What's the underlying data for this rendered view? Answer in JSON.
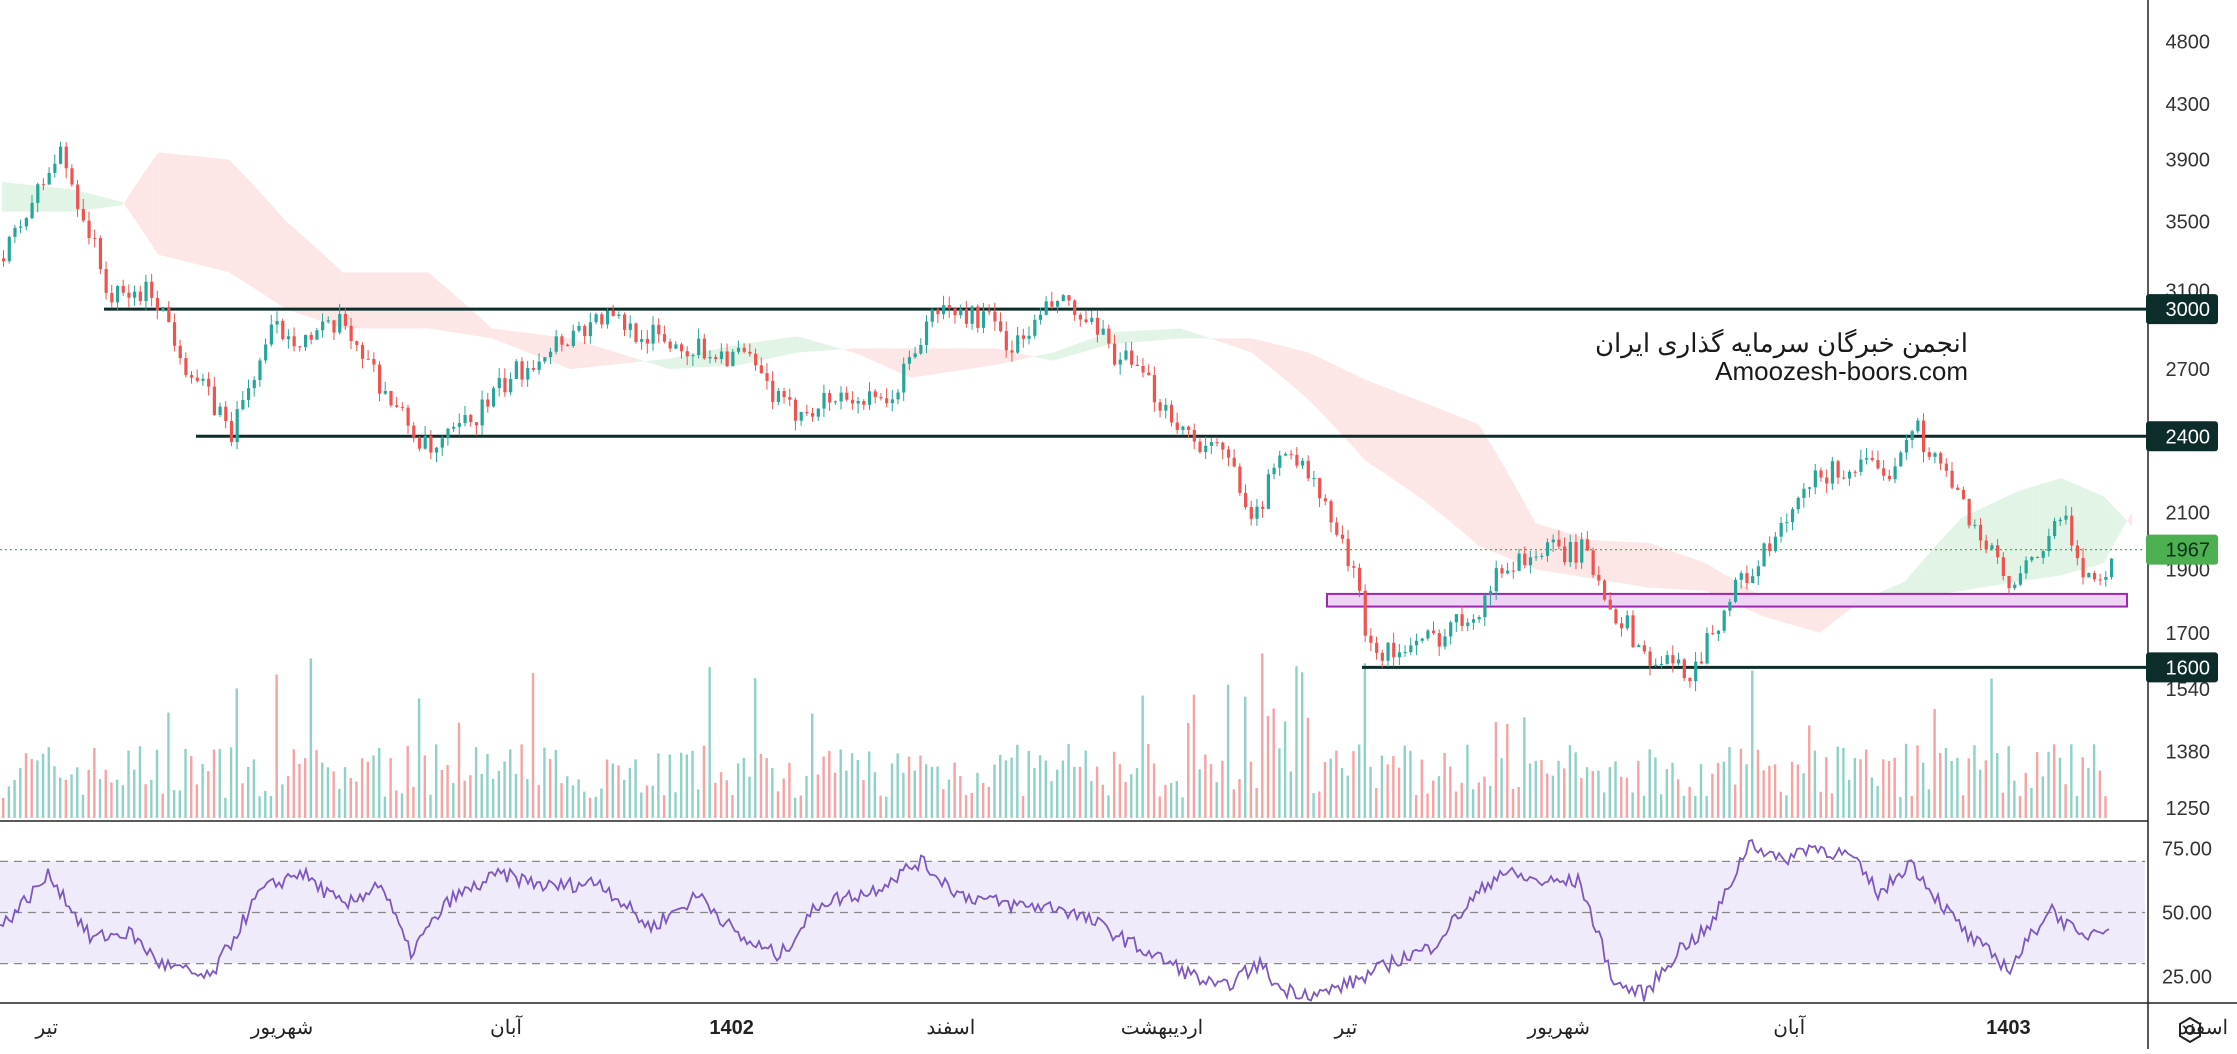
{
  "chart_data": [
    {
      "type": "candlestick",
      "panel": "price",
      "title": "",
      "watermark_lines": [
        "انجمن خبرگان سرمایه گذاری ایران",
        "Amoozesh-boors.com"
      ],
      "y_scale": "log",
      "ylim": [
        1250,
        5000
      ],
      "y_ticks": [
        4800,
        4300,
        3900,
        3500,
        3100,
        2700,
        2400,
        2100,
        1900,
        1700,
        1540,
        1380,
        1250
      ],
      "current_price": 1967,
      "current_price_label": "1967",
      "horizontal_levels": [
        {
          "price": 3000,
          "label": "3000",
          "from": "تیر",
          "to": "end"
        },
        {
          "price": 2400,
          "label": "2400",
          "from": "شهریور",
          "to": "end"
        },
        {
          "price": 1600,
          "label": "1600",
          "from": "شهریور",
          "to": "end"
        }
      ],
      "support_zone": {
        "low": 1780,
        "high": 1820
      },
      "series_anchors": [
        {
          "t": 0,
          "price": 3280
        },
        {
          "t": 40,
          "price": 3950
        },
        {
          "t": 75,
          "price": 3050
        },
        {
          "t": 105,
          "price": 3100
        },
        {
          "t": 130,
          "price": 2700
        },
        {
          "t": 160,
          "price": 2420
        },
        {
          "t": 190,
          "price": 2900
        },
        {
          "t": 215,
          "price": 2850
        },
        {
          "t": 240,
          "price": 2920
        },
        {
          "t": 275,
          "price": 2520
        },
        {
          "t": 300,
          "price": 2320
        },
        {
          "t": 330,
          "price": 2480
        },
        {
          "t": 355,
          "price": 2650
        },
        {
          "t": 380,
          "price": 2800
        },
        {
          "t": 420,
          "price": 2960
        },
        {
          "t": 470,
          "price": 2820
        },
        {
          "t": 520,
          "price": 2760
        },
        {
          "t": 550,
          "price": 2500
        },
        {
          "t": 590,
          "price": 2580
        },
        {
          "t": 620,
          "price": 2520
        },
        {
          "t": 655,
          "price": 3000
        },
        {
          "t": 690,
          "price": 2950
        },
        {
          "t": 710,
          "price": 2800
        },
        {
          "t": 740,
          "price": 3050
        },
        {
          "t": 770,
          "price": 2850
        },
        {
          "t": 800,
          "price": 2650
        },
        {
          "t": 830,
          "price": 2420
        },
        {
          "t": 860,
          "price": 2300
        },
        {
          "t": 880,
          "price": 2080
        },
        {
          "t": 900,
          "price": 2380
        },
        {
          "t": 925,
          "price": 2150
        },
        {
          "t": 945,
          "price": 1920
        },
        {
          "t": 960,
          "price": 1660
        },
        {
          "t": 985,
          "price": 1640
        },
        {
          "t": 1010,
          "price": 1700
        },
        {
          "t": 1035,
          "price": 1780
        },
        {
          "t": 1055,
          "price": 1920
        },
        {
          "t": 1080,
          "price": 1960
        },
        {
          "t": 1110,
          "price": 1960
        },
        {
          "t": 1130,
          "price": 1780
        },
        {
          "t": 1155,
          "price": 1620
        },
        {
          "t": 1185,
          "price": 1590
        },
        {
          "t": 1215,
          "price": 1830
        },
        {
          "t": 1240,
          "price": 1970
        },
        {
          "t": 1275,
          "price": 2240
        },
        {
          "t": 1305,
          "price": 2280
        },
        {
          "t": 1320,
          "price": 2220
        },
        {
          "t": 1340,
          "price": 2460
        },
        {
          "t": 1370,
          "price": 2180
        },
        {
          "t": 1390,
          "price": 2000
        },
        {
          "t": 1410,
          "price": 1820
        },
        {
          "t": 1430,
          "price": 1960
        },
        {
          "t": 1445,
          "price": 2080
        },
        {
          "t": 1460,
          "price": 1910
        },
        {
          "t": 1475,
          "price": 1840
        },
        {
          "t": 1480,
          "price": 1967
        }
      ],
      "ichimoku_cloud": [
        {
          "t": 0,
          "a": 3750,
          "b": 3560
        },
        {
          "t": 50,
          "a": 3700,
          "b": 3560
        },
        {
          "t": 85,
          "a": 3620,
          "b": 3600
        },
        {
          "t": 110,
          "a": 3300,
          "b": 3950
        },
        {
          "t": 160,
          "a": 3200,
          "b": 3900
        },
        {
          "t": 200,
          "a": 3000,
          "b": 3500
        },
        {
          "t": 240,
          "a": 2900,
          "b": 3200
        },
        {
          "t": 300,
          "a": 2900,
          "b": 3200
        },
        {
          "t": 345,
          "a": 2850,
          "b": 2900
        },
        {
          "t": 400,
          "a": 2700,
          "b": 2850
        },
        {
          "t": 470,
          "a": 2750,
          "b": 2700
        },
        {
          "t": 520,
          "a": 2820,
          "b": 2720
        },
        {
          "t": 560,
          "a": 2860,
          "b": 2780
        },
        {
          "t": 600,
          "a": 2780,
          "b": 2800
        },
        {
          "t": 640,
          "a": 2660,
          "b": 2800
        },
        {
          "t": 700,
          "a": 2720,
          "b": 2800
        },
        {
          "t": 740,
          "a": 2780,
          "b": 2740
        },
        {
          "t": 780,
          "a": 2880,
          "b": 2820
        },
        {
          "t": 830,
          "a": 2900,
          "b": 2850
        },
        {
          "t": 880,
          "a": 2780,
          "b": 2850
        },
        {
          "t": 920,
          "a": 2560,
          "b": 2780
        },
        {
          "t": 960,
          "a": 2300,
          "b": 2650
        },
        {
          "t": 1000,
          "a": 2150,
          "b": 2550
        },
        {
          "t": 1040,
          "a": 1980,
          "b": 2450
        },
        {
          "t": 1080,
          "a": 1900,
          "b": 2060
        },
        {
          "t": 1120,
          "a": 1870,
          "b": 2000
        },
        {
          "t": 1160,
          "a": 1840,
          "b": 1990
        },
        {
          "t": 1200,
          "a": 1830,
          "b": 1920
        },
        {
          "t": 1240,
          "a": 1750,
          "b": 1810
        },
        {
          "t": 1280,
          "a": 1700,
          "b": 1800
        },
        {
          "t": 1310,
          "a": 1800,
          "b": 1780
        },
        {
          "t": 1340,
          "a": 1860,
          "b": 1800
        },
        {
          "t": 1380,
          "a": 2080,
          "b": 1830
        },
        {
          "t": 1420,
          "a": 2180,
          "b": 1860
        },
        {
          "t": 1450,
          "a": 2230,
          "b": 1880
        },
        {
          "t": 1480,
          "a": 2160,
          "b": 1920
        },
        {
          "t": 1500,
          "a": 2050,
          "b": 2100
        }
      ],
      "candle_count": 1480,
      "colors": {
        "up": "#26a69a",
        "down": "#ef5350",
        "cloud_bull": "#e1f4e6",
        "cloud_bear": "#fde6e6",
        "level_line": "#0d2d2a",
        "zone_fill": "#f0d4f6",
        "zone_border": "#9c27b0",
        "price_tag": "#4caf50"
      }
    },
    {
      "type": "bar",
      "panel": "volume",
      "bar_count": 1480,
      "colors": {
        "up": "#8fd1c7",
        "down": "#f5a3a3"
      }
    },
    {
      "type": "line",
      "panel": "rsi",
      "ylim": [
        15,
        85
      ],
      "y_ticks": [
        75,
        50,
        25
      ],
      "y_tick_labels": [
        "75.00",
        "50.00",
        "25.00"
      ],
      "bands": {
        "upper": 70,
        "middle": 50,
        "lower": 30
      },
      "anchors": [
        {
          "t": 0,
          "v": 44
        },
        {
          "t": 50,
          "v": 65
        },
        {
          "t": 90,
          "v": 40
        },
        {
          "t": 130,
          "v": 42
        },
        {
          "t": 160,
          "v": 30
        },
        {
          "t": 210,
          "v": 24
        },
        {
          "t": 260,
          "v": 58
        },
        {
          "t": 300,
          "v": 66
        },
        {
          "t": 345,
          "v": 52
        },
        {
          "t": 380,
          "v": 62
        },
        {
          "t": 410,
          "v": 34
        },
        {
          "t": 450,
          "v": 55
        },
        {
          "t": 500,
          "v": 65
        },
        {
          "t": 550,
          "v": 60
        },
        {
          "t": 600,
          "v": 62
        },
        {
          "t": 650,
          "v": 44
        },
        {
          "t": 700,
          "v": 57
        },
        {
          "t": 740,
          "v": 40
        },
        {
          "t": 780,
          "v": 33
        },
        {
          "t": 820,
          "v": 54
        },
        {
          "t": 870,
          "v": 58
        },
        {
          "t": 920,
          "v": 70
        },
        {
          "t": 960,
          "v": 57
        },
        {
          "t": 1010,
          "v": 53
        },
        {
          "t": 1060,
          "v": 52
        },
        {
          "t": 1100,
          "v": 45
        },
        {
          "t": 1140,
          "v": 36
        },
        {
          "t": 1180,
          "v": 28
        },
        {
          "t": 1220,
          "v": 20
        },
        {
          "t": 1260,
          "v": 30
        },
        {
          "t": 1280,
          "v": 20
        },
        {
          "t": 1320,
          "v": 18
        },
        {
          "t": 1360,
          "v": 24
        },
        {
          "t": 1400,
          "v": 32
        },
        {
          "t": 1430,
          "v": 36
        },
        {
          "t": 1470,
          "v": 54
        },
        {
          "t": 1500,
          "v": 66
        },
        {
          "t": 1540,
          "v": 62
        },
        {
          "t": 1580,
          "v": 62
        },
        {
          "t": 1615,
          "v": 22
        },
        {
          "t": 1645,
          "v": 18
        },
        {
          "t": 1680,
          "v": 36
        },
        {
          "t": 1710,
          "v": 44
        },
        {
          "t": 1750,
          "v": 78
        },
        {
          "t": 1780,
          "v": 70
        },
        {
          "t": 1810,
          "v": 76
        },
        {
          "t": 1850,
          "v": 72
        },
        {
          "t": 1880,
          "v": 57
        },
        {
          "t": 1910,
          "v": 70
        },
        {
          "t": 1940,
          "v": 54
        },
        {
          "t": 1970,
          "v": 40
        },
        {
          "t": 2010,
          "v": 28
        },
        {
          "t": 2050,
          "v": 52
        },
        {
          "t": 2080,
          "v": 40
        },
        {
          "t": 2110,
          "v": 46
        }
      ],
      "line_color": "#7e57c2",
      "band_fill": "#efebfa"
    }
  ],
  "x_axis": {
    "labels": [
      {
        "text": "تیر",
        "pos": 0.028,
        "bold": false
      },
      {
        "text": "شهریور",
        "pos": 0.175,
        "bold": false
      },
      {
        "text": "آبان",
        "pos": 0.315,
        "bold": false
      },
      {
        "text": "1402",
        "pos": 0.456,
        "bold": true
      },
      {
        "text": "اسفند",
        "pos": 0.593,
        "bold": false
      },
      {
        "text": "اردیبهشت",
        "pos": 0.725,
        "bold": false
      },
      {
        "text": "تیر",
        "pos": 0.84,
        "bold": false
      },
      {
        "text": "شهریور",
        "pos": 0.973,
        "bold": false
      },
      {
        "text": "آبان",
        "pos": 1.117,
        "bold": false
      },
      {
        "text": "1403",
        "pos": 1.254,
        "bold": true
      },
      {
        "text": "اسفند",
        "pos": 1.376,
        "bold": false
      }
    ]
  },
  "toolbar": {
    "settings_icon": "hexagon-gear-icon"
  }
}
